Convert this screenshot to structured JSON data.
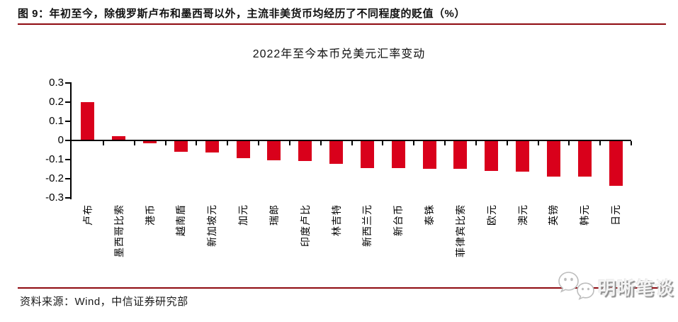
{
  "figure": {
    "caption": "图 9：年初至今，除俄罗斯卢布和墨西哥以外，主流非美货币均经历了不同程度的贬值（%）",
    "accent_color": "#8f0a10",
    "bar_color": "#d9001b"
  },
  "chart_data": {
    "type": "bar",
    "title": "2022年至今本币兑美元汇率变动",
    "categories": [
      "卢布",
      "墨西哥比索",
      "港币",
      "越南盾",
      "新加坡元",
      "加元",
      "瑞郎",
      "印度卢比",
      "林吉特",
      "新西兰元",
      "新台币",
      "泰铢",
      "菲律宾比索",
      "欧元",
      "澳元",
      "英镑",
      "韩元",
      "日元"
    ],
    "values": [
      0.195,
      0.02,
      -0.01,
      -0.055,
      -0.06,
      -0.09,
      -0.1,
      -0.105,
      -0.12,
      -0.14,
      -0.14,
      -0.145,
      -0.145,
      -0.155,
      -0.16,
      -0.185,
      -0.185,
      -0.235
    ],
    "xlabel": "",
    "ylabel": "",
    "ylim": [
      -0.3,
      0.3
    ],
    "yticks": [
      0.3,
      0.2,
      0.1,
      0,
      -0.1,
      -0.2,
      -0.3
    ],
    "ytick_labels": [
      "0.3",
      "0.2",
      "0.1",
      "0",
      "-0.1",
      "-0.2",
      "-0.3"
    ],
    "grid": false,
    "legend": null,
    "bar_color": "#d9001b"
  },
  "footer": {
    "source": "资料来源：Wind，中信证券研究部",
    "watermark_text": "明晰笔谈"
  }
}
